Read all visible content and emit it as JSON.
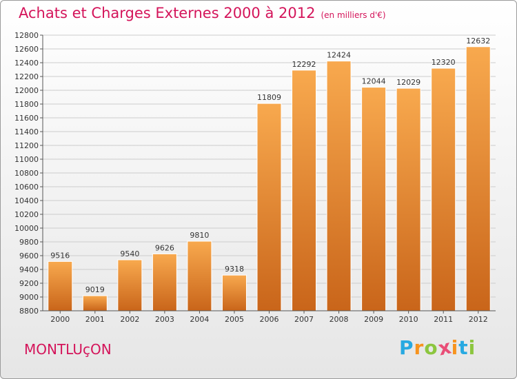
{
  "title": "Achats et Charges Externes 2000 à 2012",
  "subtitle": "(en milliers d'€)",
  "commune": "MONTLUçON",
  "logo": {
    "text": "Proxiti",
    "letter_colors": [
      "#27a9e1",
      "#f7931e",
      "#8cc63f",
      "#e94e77",
      "#f7931e",
      "#27a9e1",
      "#8cc63f"
    ]
  },
  "colors": {
    "title": "#d4145a",
    "bar_light": "#f8a94e",
    "bar_dark": "#c9651a",
    "grid": "#cccccc"
  },
  "chart_data": {
    "type": "bar",
    "title": "Achats et Charges Externes 2000 à 2012",
    "subtitle": "(en milliers d'€)",
    "categories": [
      "2000",
      "2001",
      "2002",
      "2003",
      "2004",
      "2005",
      "2006",
      "2007",
      "2008",
      "2009",
      "2010",
      "2011",
      "2012"
    ],
    "values": [
      9516,
      9019,
      9540,
      9626,
      9810,
      9318,
      11809,
      12292,
      12424,
      12044,
      12029,
      12320,
      12632
    ],
    "ylim": [
      8800,
      12800
    ],
    "yticks": [
      8800,
      9000,
      9200,
      9400,
      9600,
      9800,
      10000,
      10200,
      10400,
      10600,
      10800,
      11000,
      11200,
      11400,
      11600,
      11800,
      12000,
      12200,
      12400,
      12600,
      12800
    ],
    "grid": true,
    "data_labels": true,
    "xlabel": "",
    "ylabel": ""
  }
}
